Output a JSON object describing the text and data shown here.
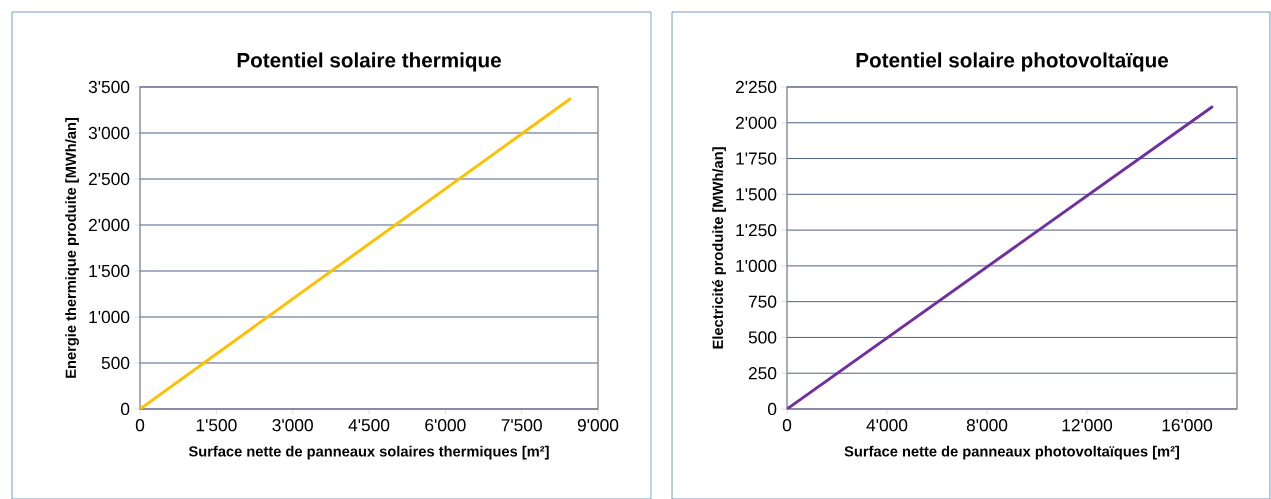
{
  "chart_data": [
    {
      "type": "line",
      "title": "Potentiel solaire thermique",
      "xlabel": "Surface nette de panneaux solaires thermiques [m²]",
      "ylabel": "Energie thermique produite [MWh/an]",
      "x": [
        0,
        8450
      ],
      "series": [
        {
          "color": "#ffc000",
          "values": [
            0,
            3370
          ]
        }
      ],
      "xlim": [
        0,
        9000
      ],
      "ylim": [
        0,
        3500
      ],
      "xticks": [
        0,
        {
          "value": 1500,
          "label": "1'500"
        },
        {
          "value": 3000,
          "label": "3'000"
        },
        {
          "value": 4500,
          "label": "4'500"
        },
        {
          "value": 6000,
          "label": "6'000"
        },
        {
          "value": 7500,
          "label": "7'500"
        },
        {
          "value": 9000,
          "label": "9'000"
        }
      ],
      "yticks": [
        0,
        500,
        {
          "value": 1000,
          "label": "1'000"
        },
        {
          "value": 1500,
          "label": "1'500"
        },
        {
          "value": 2000,
          "label": "2'000"
        },
        {
          "value": 2500,
          "label": "2'500"
        },
        {
          "value": 3000,
          "label": "3'000"
        },
        {
          "value": 3500,
          "label": "3'500"
        }
      ],
      "grid": "y",
      "marker": "none",
      "line_style": "solid"
    },
    {
      "type": "line",
      "title": "Potentiel solaire photovoltaïque",
      "xlabel": "Surface nette de panneaux photovoltaïques [m²]",
      "ylabel": "Electricité produite [MWh/an]",
      "x": [
        0,
        17000
      ],
      "series": [
        {
          "color": "#7030a0",
          "values": [
            0,
            2110
          ]
        }
      ],
      "xlim": [
        0,
        18000
      ],
      "ylim": [
        0,
        2250
      ],
      "xticks": [
        0,
        {
          "value": 4000,
          "label": "4'000"
        },
        {
          "value": 8000,
          "label": "8'000"
        },
        {
          "value": 12000,
          "label": "12'000"
        },
        {
          "value": 16000,
          "label": "16'000"
        }
      ],
      "yticks": [
        0,
        250,
        500,
        750,
        {
          "value": 1000,
          "label": "1'000"
        },
        {
          "value": 1250,
          "label": "1'250"
        },
        {
          "value": 1500,
          "label": "1'500"
        },
        {
          "value": 1750,
          "label": "1'750"
        },
        {
          "value": 2000,
          "label": "2'000"
        },
        {
          "value": 2250,
          "label": "2'250"
        }
      ],
      "grid": "y",
      "marker": "none",
      "line_style": "solid"
    }
  ]
}
